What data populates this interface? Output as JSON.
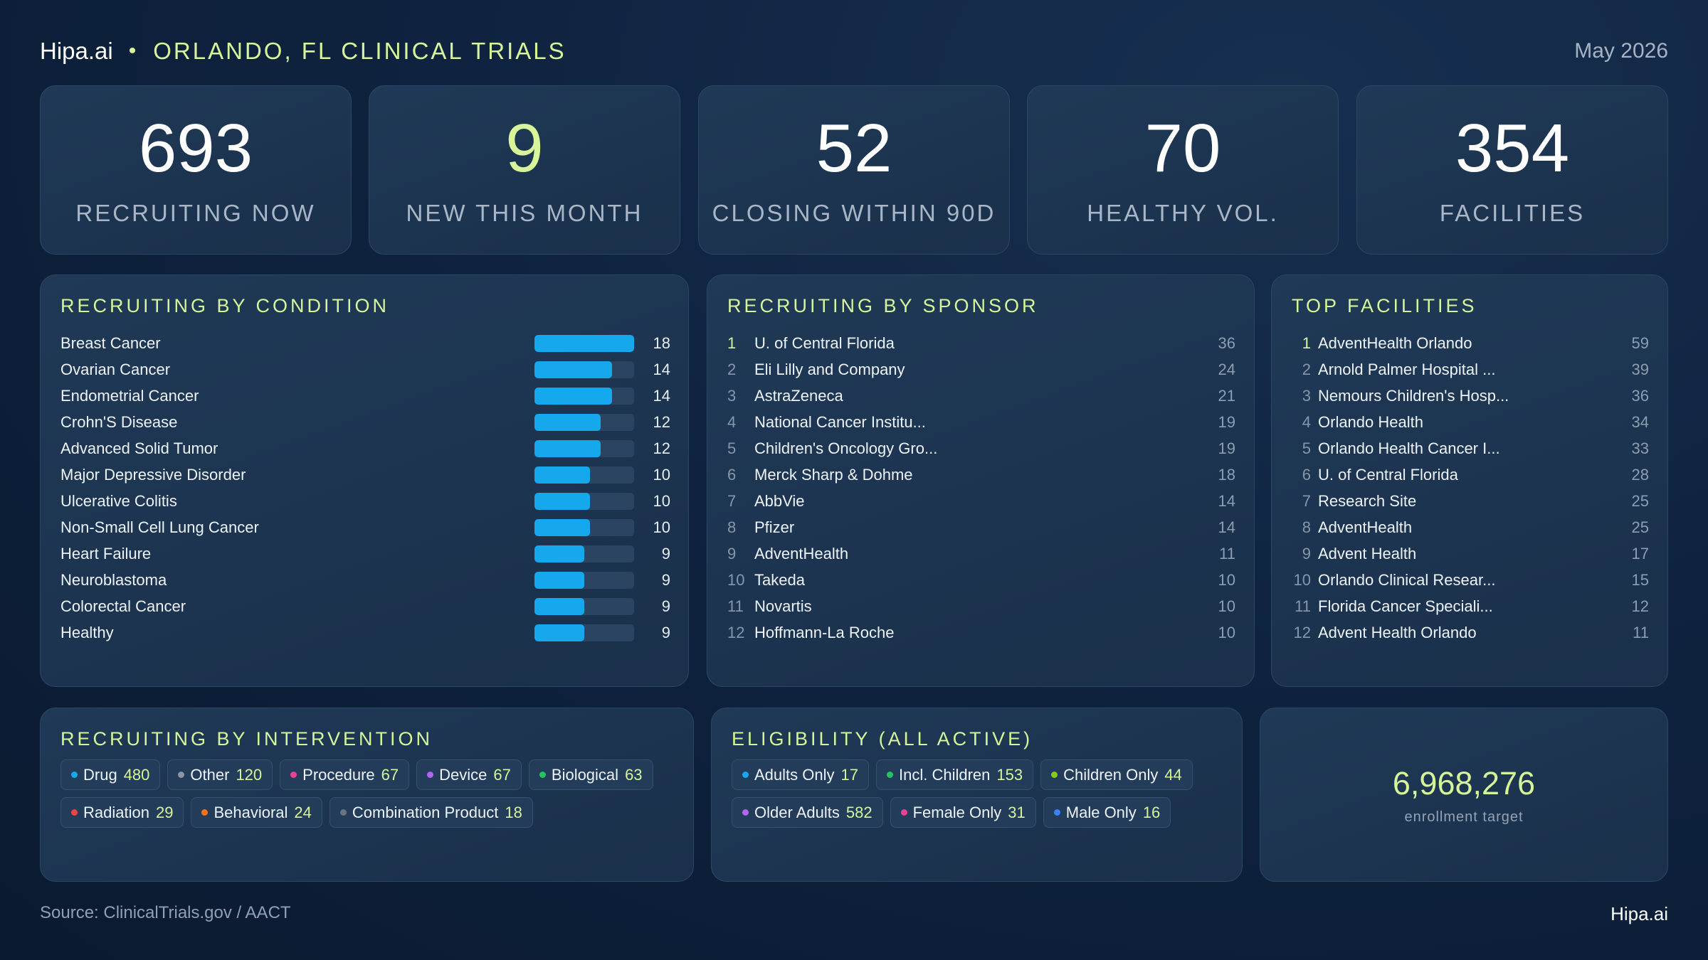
{
  "header": {
    "brand": "Hipa.ai",
    "separator": "•",
    "title": "ORLANDO, FL CLINICAL TRIALS",
    "date": "May 2026"
  },
  "kpis": [
    {
      "value": "693",
      "label": "RECRUITING NOW"
    },
    {
      "value": "9",
      "label": "NEW THIS MONTH"
    },
    {
      "value": "52",
      "label": "CLOSING WITHIN 90D"
    },
    {
      "value": "70",
      "label": "HEALTHY VOL."
    },
    {
      "value": "354",
      "label": "FACILITIES"
    }
  ],
  "conditions": {
    "title": "RECRUITING BY CONDITION",
    "max": 18,
    "items": [
      {
        "name": "Breast Cancer",
        "count": "18",
        "value": 18
      },
      {
        "name": "Ovarian Cancer",
        "count": "14",
        "value": 14
      },
      {
        "name": "Endometrial Cancer",
        "count": "14",
        "value": 14
      },
      {
        "name": "Crohn'S Disease",
        "count": "12",
        "value": 12
      },
      {
        "name": "Advanced Solid Tumor",
        "count": "12",
        "value": 12
      },
      {
        "name": "Major Depressive Disorder",
        "count": "10",
        "value": 10
      },
      {
        "name": "Ulcerative Colitis",
        "count": "10",
        "value": 10
      },
      {
        "name": "Non-Small Cell Lung Cancer",
        "count": "10",
        "value": 10
      },
      {
        "name": "Heart Failure",
        "count": "9",
        "value": 9
      },
      {
        "name": "Neuroblastoma",
        "count": "9",
        "value": 9
      },
      {
        "name": "Colorectal Cancer",
        "count": "9",
        "value": 9
      },
      {
        "name": "Healthy",
        "count": "9",
        "value": 9
      }
    ]
  },
  "sponsors": {
    "title": "RECRUITING BY SPONSOR",
    "items": [
      {
        "rank": "1",
        "name": "U. of Central Florida",
        "count": "36"
      },
      {
        "rank": "2",
        "name": "Eli Lilly and Company",
        "count": "24"
      },
      {
        "rank": "3",
        "name": "AstraZeneca",
        "count": "21"
      },
      {
        "rank": "4",
        "name": "National Cancer Institu...",
        "count": "19"
      },
      {
        "rank": "5",
        "name": "Children's Oncology Gro...",
        "count": "19"
      },
      {
        "rank": "6",
        "name": "Merck Sharp & Dohme",
        "count": "18"
      },
      {
        "rank": "7",
        "name": "AbbVie",
        "count": "14"
      },
      {
        "rank": "8",
        "name": "Pfizer",
        "count": "14"
      },
      {
        "rank": "9",
        "name": "AdventHealth",
        "count": "11"
      },
      {
        "rank": "10",
        "name": "Takeda",
        "count": "10"
      },
      {
        "rank": "11",
        "name": "Novartis",
        "count": "10"
      },
      {
        "rank": "12",
        "name": "Hoffmann-La Roche",
        "count": "10"
      }
    ]
  },
  "facilities": {
    "title": "TOP FACILITIES",
    "items": [
      {
        "rank": "1",
        "name": "AdventHealth Orlando",
        "count": "59"
      },
      {
        "rank": "2",
        "name": "Arnold Palmer Hospital ...",
        "count": "39"
      },
      {
        "rank": "3",
        "name": "Nemours Children's Hosp...",
        "count": "36"
      },
      {
        "rank": "4",
        "name": "Orlando Health",
        "count": "34"
      },
      {
        "rank": "5",
        "name": "Orlando Health Cancer I...",
        "count": "33"
      },
      {
        "rank": "6",
        "name": "U. of Central Florida",
        "count": "28"
      },
      {
        "rank": "7",
        "name": "Research Site",
        "count": "25"
      },
      {
        "rank": "8",
        "name": "AdventHealth",
        "count": "25"
      },
      {
        "rank": "9",
        "name": "Advent Health",
        "count": "17"
      },
      {
        "rank": "10",
        "name": "Orlando Clinical Resear...",
        "count": "15"
      },
      {
        "rank": "11",
        "name": "Florida Cancer Speciali...",
        "count": "12"
      },
      {
        "rank": "12",
        "name": "Advent Health Orlando",
        "count": "11"
      }
    ]
  },
  "interventions": {
    "title": "RECRUITING BY INTERVENTION",
    "items": [
      {
        "label": "Drug",
        "count": "480",
        "color": "#14a8ec"
      },
      {
        "label": "Other",
        "count": "120",
        "color": "#8a96a6"
      },
      {
        "label": "Procedure",
        "count": "67",
        "color": "#e84393"
      },
      {
        "label": "Device",
        "count": "67",
        "color": "#b066f0"
      },
      {
        "label": "Biological",
        "count": "63",
        "color": "#22c55e"
      },
      {
        "label": "Radiation",
        "count": "29",
        "color": "#ef4444"
      },
      {
        "label": "Behavioral",
        "count": "24",
        "color": "#f97316"
      },
      {
        "label": "Combination Product",
        "count": "18",
        "color": "#6b7280"
      }
    ]
  },
  "eligibility": {
    "title": "ELIGIBILITY (ALL ACTIVE)",
    "items": [
      {
        "label": "Adults Only",
        "count": "17",
        "color": "#14a8ec"
      },
      {
        "label": "Incl. Children",
        "count": "153",
        "color": "#22c55e"
      },
      {
        "label": "Children Only",
        "count": "44",
        "color": "#84cc16"
      },
      {
        "label": "Older Adults",
        "count": "582",
        "color": "#b066f0"
      },
      {
        "label": "Female Only",
        "count": "31",
        "color": "#e84393"
      },
      {
        "label": "Male Only",
        "count": "16",
        "color": "#3b82f6"
      }
    ]
  },
  "enrollment": {
    "value": "6,968,276",
    "label": "enrollment target"
  },
  "footer": {
    "source": "Source: ClinicalTrials.gov / AACT",
    "brand": "Hipa.ai"
  }
}
